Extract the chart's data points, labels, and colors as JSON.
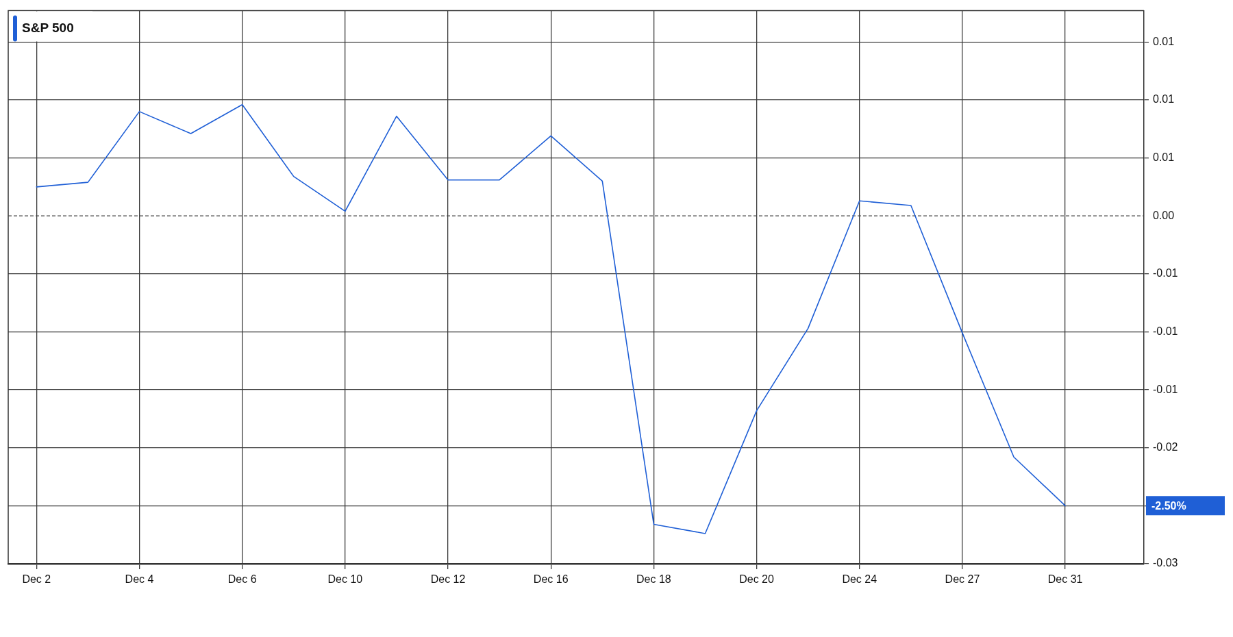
{
  "chart_data": {
    "type": "line",
    "categories": [
      "Dec 2",
      null,
      "Dec 4",
      null,
      "Dec 6",
      null,
      "Dec 10",
      null,
      "Dec 12",
      null,
      "Dec 16",
      null,
      "Dec 18",
      null,
      "Dec 20",
      null,
      "Dec 24",
      null,
      "Dec 27",
      null,
      "Dec 31"
    ],
    "series": [
      {
        "name": "S&P 500",
        "color": "#1f5fd6",
        "values": [
          0.0025,
          0.0029,
          0.009,
          0.0071,
          0.0096,
          0.0034,
          0.0004,
          0.0086,
          0.0031,
          0.0031,
          0.0069,
          0.003,
          -0.0266,
          -0.0274,
          -0.0168,
          -0.0097,
          0.0013,
          0.0009,
          -0.0101,
          -0.0208,
          -0.025
        ]
      }
    ],
    "ylim": [
      -0.03,
      0.0177
    ],
    "yticks": [
      {
        "value": 0.015,
        "label": "0.01"
      },
      0.01,
      {
        "value": 0.005,
        "label": "0.01"
      },
      {
        "value": 0,
        "label": "0.00"
      },
      {
        "value": -0.005,
        "label": "-0.01"
      },
      -0.01,
      {
        "value": -0.015,
        "label": "-0.01"
      },
      -0.02,
      {
        "value": -0.025,
        "label": null
      },
      -0.03
    ],
    "grid": true,
    "legend": "top left",
    "marker": "none",
    "line_style": "solid",
    "ref_lines": [
      {
        "axis": "y",
        "value": 0,
        "color": "#444444",
        "line_style": "dashed"
      }
    ],
    "annotations": [
      "-2.50%"
    ]
  }
}
